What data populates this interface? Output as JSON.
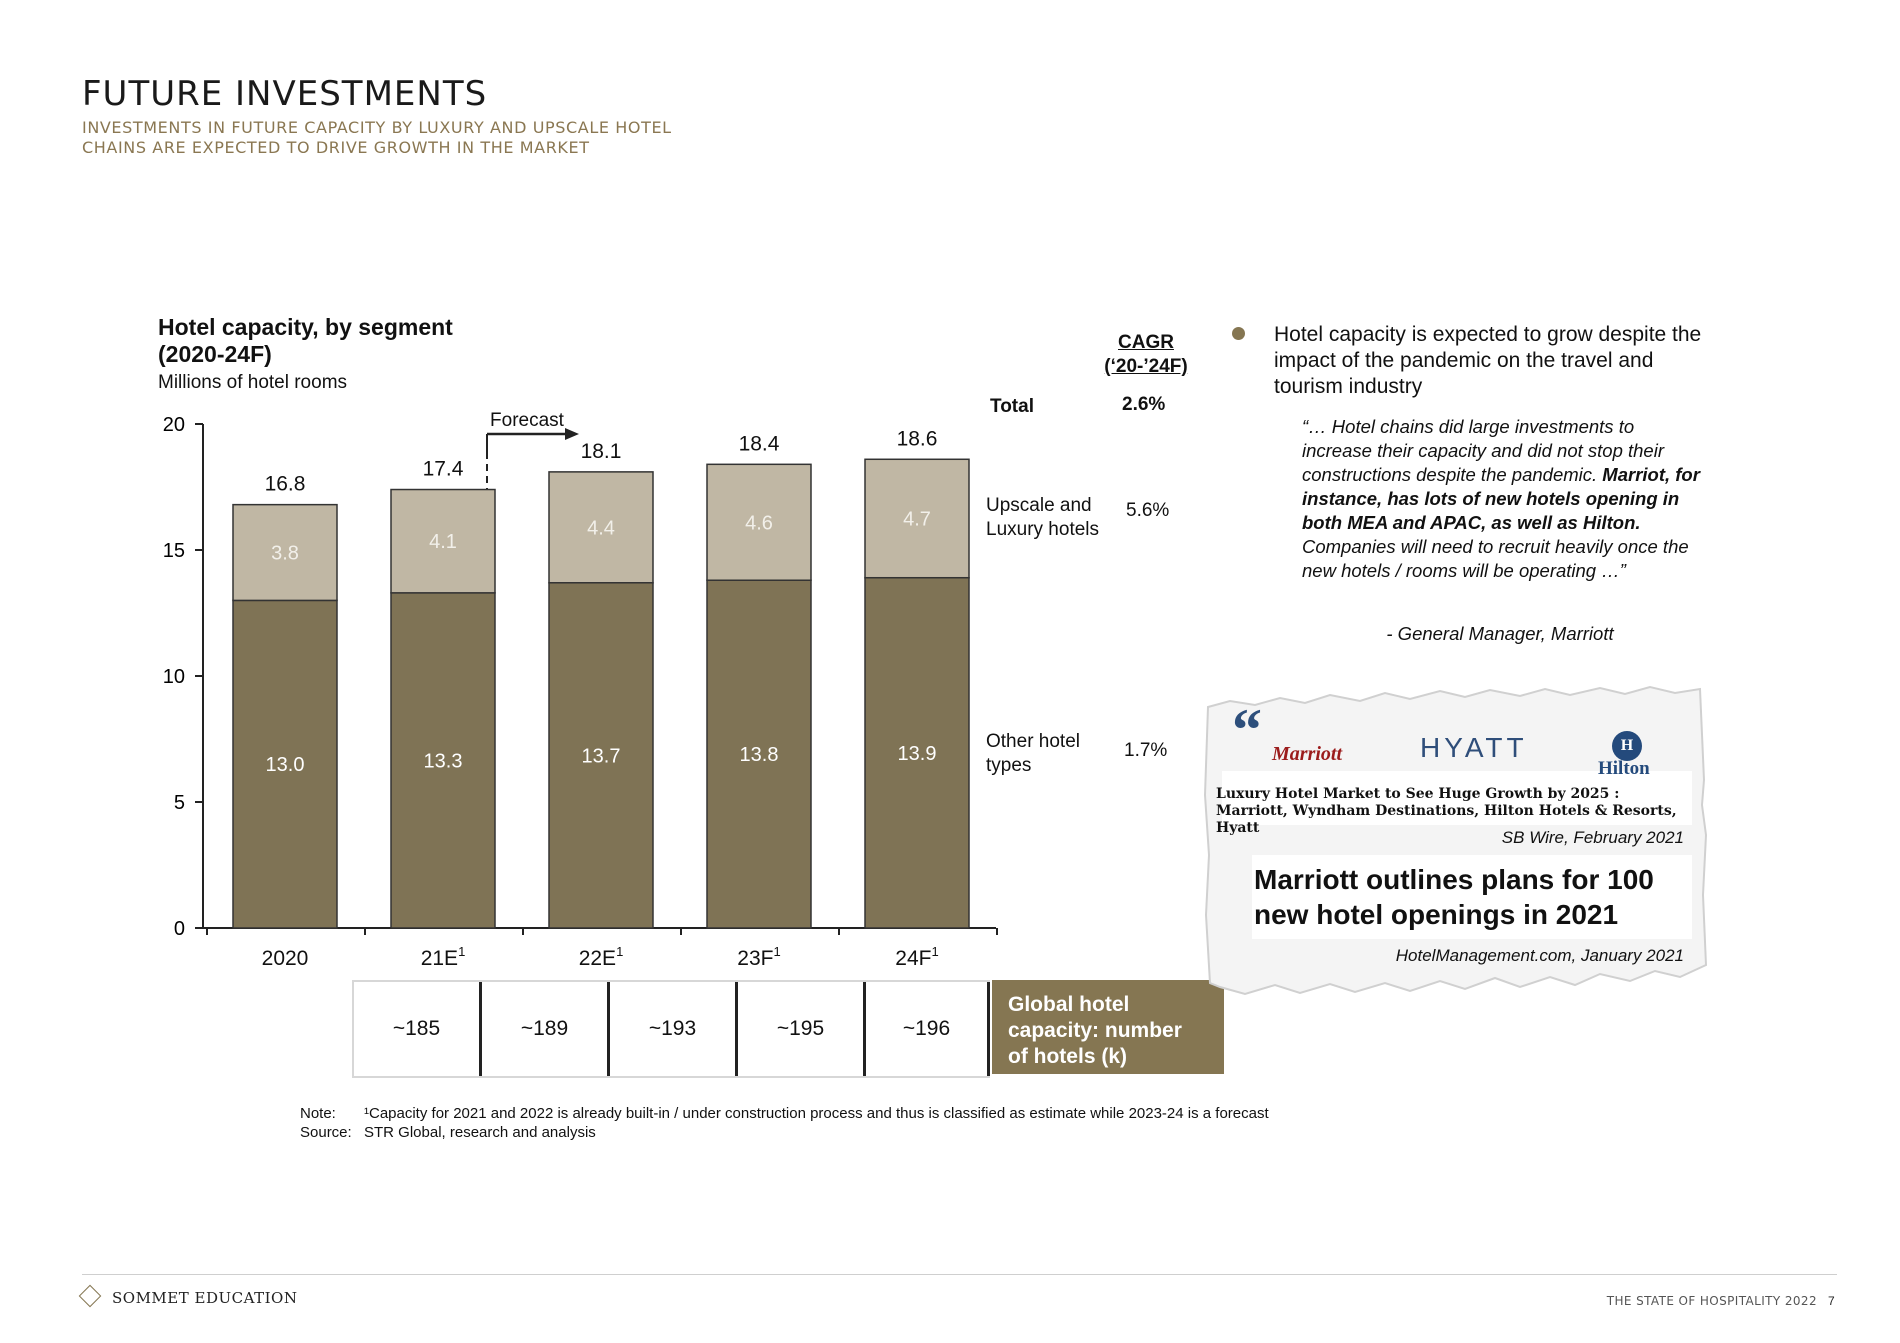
{
  "header": {
    "title": "FUTURE INVESTMENTS",
    "subtitle_line1": "INVESTMENTS IN FUTURE CAPACITY BY LUXURY AND UPSCALE HOTEL",
    "subtitle_line2": "CHAINS ARE EXPECTED TO DRIVE GROWTH IN THE MARKET"
  },
  "chart_data": {
    "type": "bar",
    "stacked": true,
    "title_line1": "Hotel capacity, by segment",
    "title_line2": "(2020-24F)",
    "ylabel": "Millions of hotel rooms",
    "ylim": [
      0,
      20
    ],
    "yticks": [
      0,
      5,
      10,
      15,
      20
    ],
    "categories": [
      "2020",
      "21E¹",
      "22E¹",
      "23F¹",
      "24F¹"
    ],
    "series": [
      {
        "name": "Other hotel types",
        "values": [
          13.0,
          13.3,
          13.7,
          13.8,
          13.9
        ],
        "labels": [
          "13.0",
          "13.3",
          "13.7",
          "13.8",
          "13.9"
        ],
        "color": "#7f7355"
      },
      {
        "name": "Upscale and Luxury hotels",
        "values": [
          3.8,
          4.1,
          4.4,
          4.6,
          4.7
        ],
        "labels": [
          "3.8",
          "4.1",
          "4.4",
          "4.6",
          "4.7"
        ],
        "color": "#c0b7a4"
      }
    ],
    "totals": [
      "16.8",
      "17.4",
      "18.1",
      "18.4",
      "18.6"
    ],
    "forecast_label": "Forecast",
    "grid": false,
    "cagr": {
      "header_line1": "CAGR",
      "header_line2": "(‘20-’24F)",
      "total_label": "Total",
      "total_value": "2.6%",
      "upscale_label_line1": "Upscale and",
      "upscale_label_line2": "Luxury hotels",
      "upscale_value": "5.6%",
      "other_label_line1": "Other hotel",
      "other_label_line2": "types",
      "other_value": "1.7%"
    }
  },
  "hotels_table": {
    "values": [
      "~185",
      "~189",
      "~193",
      "~195",
      "~196"
    ],
    "label_line1": "Global hotel",
    "label_line2": "capacity: number",
    "label_line3": "of hotels (k)"
  },
  "commentary": {
    "bullet": "Hotel capacity is expected to grow despite the impact of the pandemic on the travel and tourism industry",
    "quote_part1": "“… Hotel chains did large investments to increase their capacity and did not stop their constructions despite the pandemic. ",
    "quote_bold": "Marriot, for instance, has lots of new hotels opening in both MEA and APAC, as well as Hilton.",
    "quote_part2": " Companies will need to recruit heavily once the new hotels / rooms will be operating …”",
    "quote_attribution": "- General Manager, Marriott"
  },
  "clipping": {
    "quote_mark": "“",
    "logo_marriott": "Marriott",
    "logo_hyatt": "HYATT",
    "logo_hilton_mark": "H",
    "logo_hilton": "Hilton",
    "headline1": "Luxury Hotel Market to See Huge Growth by 2025 : Marriott, Wyndham Destinations, Hilton Hotels & Resorts, Hyatt",
    "source1": "SB Wire, February 2021",
    "headline2": "Marriott outlines plans for 100 new hotel openings in 2021",
    "source2": "HotelManagement.com, January 2021"
  },
  "notes": {
    "note_label": "Note:",
    "note_text": "¹Capacity for 2021 and 2022 is already built-in / under construction process and thus is classified as estimate while 2023-24 is a forecast",
    "source_label": "Source:",
    "source_text": "STR Global, research and analysis"
  },
  "footer": {
    "brand": "SOMMET EDUCATION",
    "report": "THE STATE OF HOSPITALITY 2022",
    "page": "7"
  },
  "colors": {
    "accent": "#857652",
    "subtitle": "#8a7752",
    "dark_bar": "#7f7355",
    "light_bar": "#c0b7a4"
  }
}
